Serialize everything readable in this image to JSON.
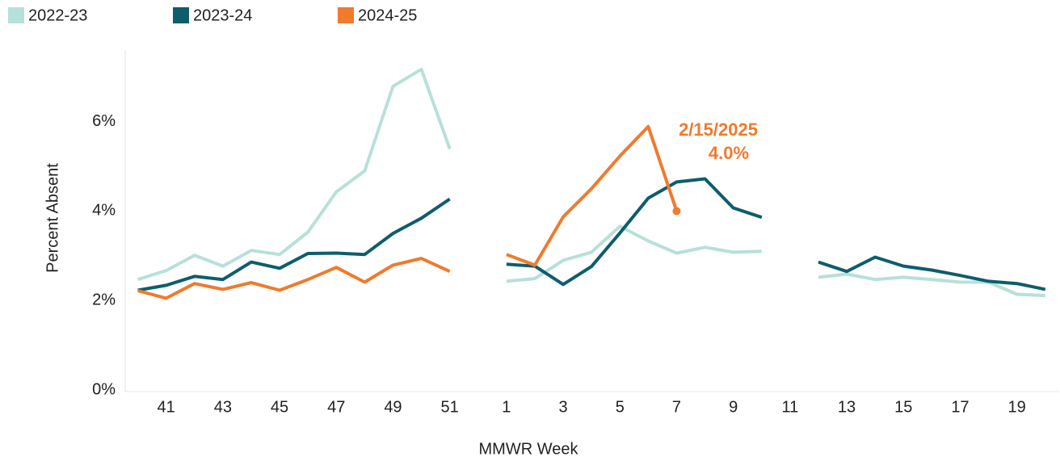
{
  "chart_data": {
    "type": "line",
    "xlabel": "MMWR Week",
    "ylabel": "Percent Absent",
    "categories": [
      null,
      "41",
      null,
      "43",
      null,
      "45",
      null,
      "47",
      null,
      "49",
      null,
      "51",
      null,
      "1",
      null,
      "3",
      null,
      "5",
      null,
      "7",
      null,
      "9",
      null,
      "11",
      null,
      "13",
      null,
      "15",
      null,
      "17",
      null,
      "19",
      null
    ],
    "series": [
      {
        "name": "2022-23",
        "color": "#b7e0d9",
        "values": [
          2.47,
          2.67,
          3.01,
          2.77,
          3.12,
          3.03,
          3.53,
          4.43,
          4.9,
          6.79,
          7.17,
          5.39,
          null,
          2.43,
          2.49,
          2.9,
          3.08,
          3.66,
          3.33,
          3.06,
          3.19,
          3.08,
          3.1,
          null,
          2.52,
          2.59,
          2.47,
          2.52,
          2.47,
          2.41,
          2.41,
          2.14,
          2.11
        ]
      },
      {
        "name": "2023-24",
        "color": "#0d5d6d",
        "values": [
          2.23,
          2.34,
          2.54,
          2.47,
          2.86,
          2.72,
          3.05,
          3.06,
          3.03,
          3.5,
          3.84,
          4.27,
          null,
          2.81,
          2.77,
          2.36,
          2.76,
          3.51,
          4.29,
          4.65,
          4.72,
          4.07,
          3.86,
          null,
          2.86,
          2.65,
          2.97,
          2.77,
          2.68,
          2.56,
          2.43,
          2.38,
          2.25
        ]
      },
      {
        "name": "2024-25",
        "color": "#f07a2d",
        "values": [
          2.22,
          2.05,
          2.38,
          2.25,
          2.4,
          2.23,
          2.47,
          2.74,
          2.41,
          2.79,
          2.94,
          2.65,
          null,
          3.03,
          2.79,
          3.87,
          4.5,
          5.23,
          5.89,
          4.0,
          null,
          null,
          null,
          null,
          null,
          null,
          null,
          null,
          null,
          null,
          null,
          null,
          null
        ]
      }
    ],
    "annotation": {
      "date": "2/15/2025",
      "value_label": "4.0%"
    },
    "ylim": [
      0,
      7.6
    ],
    "yticks": [
      {
        "value": 0,
        "label": "0%"
      },
      {
        "value": 2,
        "label": "2%"
      },
      {
        "value": 4,
        "label": "4%"
      },
      {
        "value": 6,
        "label": "6%"
      }
    ],
    "grid": false,
    "legend": "top-left"
  }
}
